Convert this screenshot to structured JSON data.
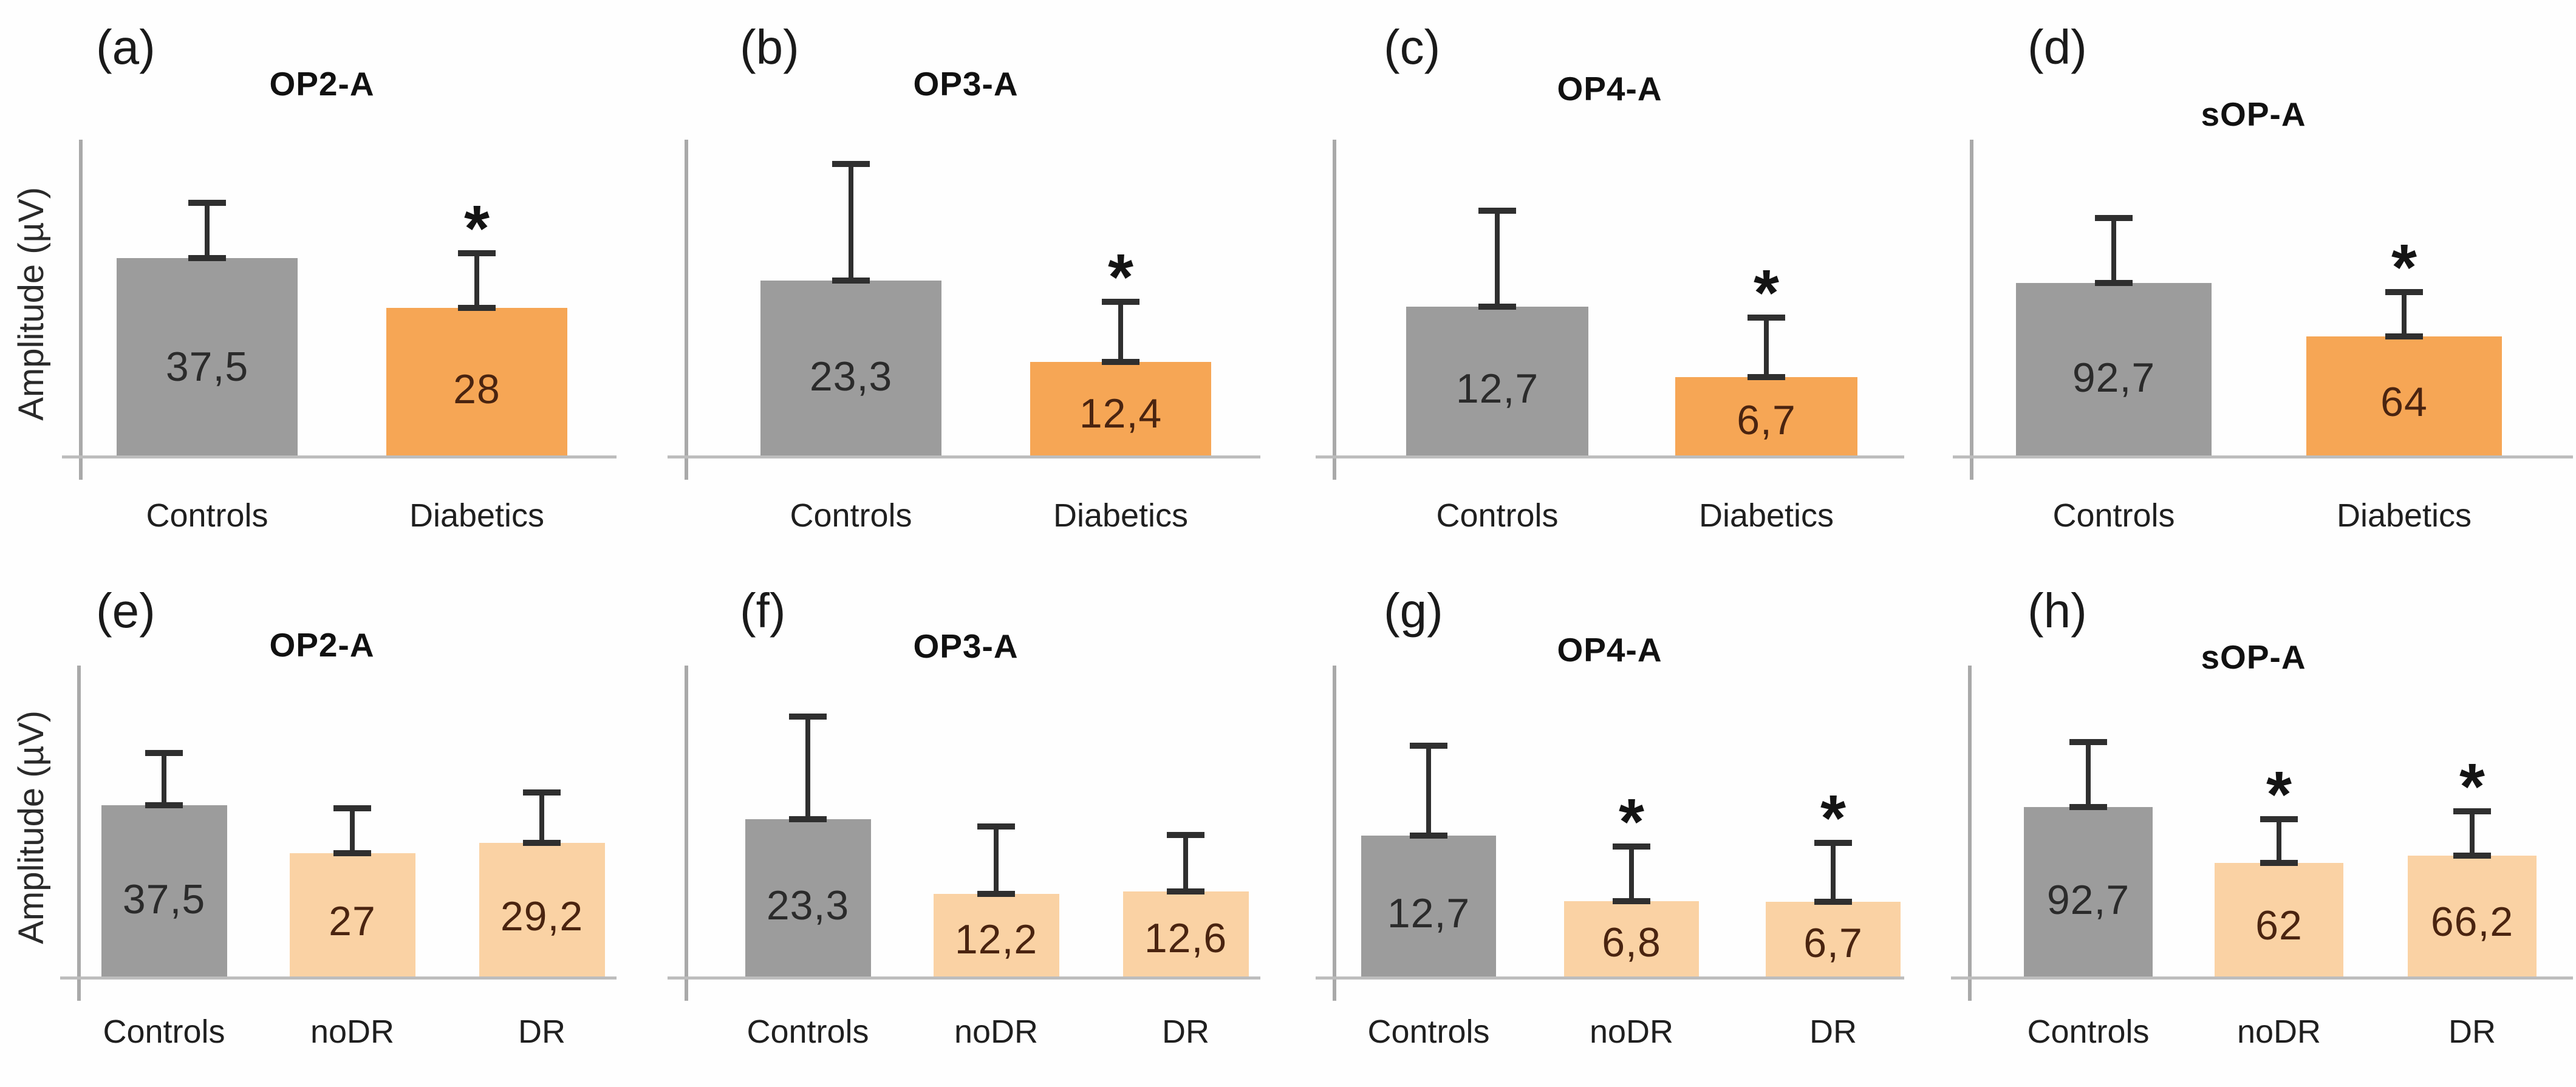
{
  "figure": {
    "ylabel": "Amplitude (µV)",
    "sig_symbol": "*",
    "colors": {
      "control_bar": "#9C9C9C",
      "diabetic_bar": "#F6A655",
      "dr_bar": "#FAD2A4",
      "axis_line": "#A9A9A9",
      "baseline": "#BDBDBD",
      "error_bar": "#2F2F2F",
      "value_on_control": "#2B2B2B",
      "value_on_orange": "#4A2410"
    }
  },
  "chart_data": [
    {
      "type": "bar",
      "panel_letter": "(a)",
      "title": "OP2-A",
      "ylabel": "Amplitude (µV)",
      "show_ylabel": true,
      "ymax": 60,
      "grid": false,
      "error_bars": true,
      "categories": [
        "Controls",
        "Diabetics"
      ],
      "bars": [
        {
          "label": "Controls",
          "value_display": "37,5",
          "value": 37.5,
          "error": 10.5,
          "group": "control",
          "sig": false
        },
        {
          "label": "Diabetics",
          "value_display": "28",
          "value": 28,
          "error": 10.4,
          "group": "diabetic",
          "sig": true
        }
      ]
    },
    {
      "type": "bar",
      "panel_letter": "(b)",
      "title": "OP3-A",
      "show_ylabel": false,
      "ymax": 42,
      "grid": false,
      "error_bars": true,
      "categories": [
        "Controls",
        "Diabetics"
      ],
      "bars": [
        {
          "label": "Controls",
          "value_display": "23,3",
          "value": 23.3,
          "error": 15.5,
          "group": "control",
          "sig": false
        },
        {
          "label": "Diabetics",
          "value_display": "12,4",
          "value": 12.4,
          "error": 8.0,
          "group": "diabetic",
          "sig": true
        }
      ]
    },
    {
      "type": "bar",
      "panel_letter": "(c)",
      "title": "OP4-A",
      "show_ylabel": false,
      "ymax": 27,
      "grid": false,
      "error_bars": true,
      "categories": [
        "Controls",
        "Diabetics"
      ],
      "bars": [
        {
          "label": "Controls",
          "value_display": "12,7",
          "value": 12.7,
          "error": 8.2,
          "group": "control",
          "sig": false
        },
        {
          "label": "Diabetics",
          "value_display": "6,7",
          "value": 6.7,
          "error": 5.1,
          "group": "diabetic",
          "sig": true
        }
      ]
    },
    {
      "type": "bar",
      "panel_letter": "(d)",
      "title": "sOP-A",
      "show_ylabel": false,
      "ymax": 170,
      "grid": false,
      "error_bars": true,
      "categories": [
        "Controls",
        "Diabetics"
      ],
      "bars": [
        {
          "label": "Controls",
          "value_display": "92,7",
          "value": 92.7,
          "error": 35,
          "group": "control",
          "sig": false
        },
        {
          "label": "Diabetics",
          "value_display": "64",
          "value": 64,
          "error": 24,
          "group": "diabetic",
          "sig": true
        }
      ]
    },
    {
      "type": "bar",
      "panel_letter": "(e)",
      "title": "OP2-A",
      "ylabel": "Amplitude (µV)",
      "show_ylabel": true,
      "ymax": 68,
      "grid": false,
      "error_bars": true,
      "categories": [
        "Controls",
        "noDR",
        "DR"
      ],
      "bars": [
        {
          "label": "Controls",
          "value_display": "37,5",
          "value": 37.5,
          "error": 11.4,
          "group": "control",
          "sig": false
        },
        {
          "label": "noDR",
          "value_display": "27",
          "value": 27,
          "error": 9.8,
          "group": "dr",
          "sig": false
        },
        {
          "label": "DR",
          "value_display": "29,2",
          "value": 29.2,
          "error": 11.0,
          "group": "dr",
          "sig": false
        }
      ]
    },
    {
      "type": "bar",
      "panel_letter": "(f)",
      "title": "OP3-A",
      "show_ylabel": false,
      "ymax": 46,
      "grid": false,
      "error_bars": true,
      "categories": [
        "Controls",
        "noDR",
        "DR"
      ],
      "bars": [
        {
          "label": "Controls",
          "value_display": "23,3",
          "value": 23.3,
          "error": 15.2,
          "group": "control",
          "sig": false
        },
        {
          "label": "noDR",
          "value_display": "12,2",
          "value": 12.2,
          "error": 10.0,
          "group": "dr",
          "sig": false
        },
        {
          "label": "DR",
          "value_display": "12,6",
          "value": 12.6,
          "error": 8.4,
          "group": "dr",
          "sig": false
        }
      ]
    },
    {
      "type": "bar",
      "panel_letter": "(g)",
      "title": "OP4-A",
      "show_ylabel": false,
      "ymax": 28,
      "grid": false,
      "error_bars": true,
      "categories": [
        "Controls",
        "noDR",
        "DR"
      ],
      "bars": [
        {
          "label": "Controls",
          "value_display": "12,7",
          "value": 12.7,
          "error": 8.1,
          "group": "control",
          "sig": false
        },
        {
          "label": "noDR",
          "value_display": "6,8",
          "value": 6.8,
          "error": 4.9,
          "group": "dr",
          "sig": true
        },
        {
          "label": "DR",
          "value_display": "6,7",
          "value": 6.7,
          "error": 5.3,
          "group": "dr",
          "sig": true
        }
      ]
    },
    {
      "type": "bar",
      "panel_letter": "(h)",
      "title": "sOP-A",
      "show_ylabel": false,
      "ymax": 170,
      "grid": false,
      "error_bars": true,
      "categories": [
        "Controls",
        "noDR",
        "DR"
      ],
      "bars": [
        {
          "label": "Controls",
          "value_display": "92,7",
          "value": 92.7,
          "error": 35.4,
          "group": "control",
          "sig": false
        },
        {
          "label": "noDR",
          "value_display": "62",
          "value": 62,
          "error": 24.0,
          "group": "dr",
          "sig": true
        },
        {
          "label": "DR",
          "value_display": "66,2",
          "value": 66.2,
          "error": 24.4,
          "group": "dr",
          "sig": true
        }
      ]
    }
  ]
}
